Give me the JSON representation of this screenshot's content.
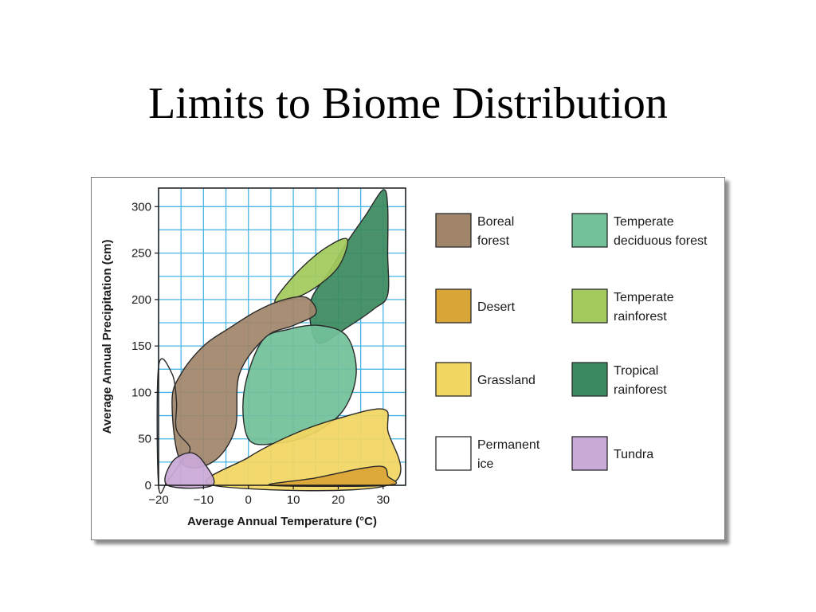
{
  "slide": {
    "title": "Limits to Biome Distribution"
  },
  "chart_data": {
    "type": "area",
    "xlabel": "Average Annual Temperature (°C)",
    "ylabel": "Average Annual Precipitation (cm)",
    "x_ticks": [
      "−20",
      "−10",
      "0",
      "10",
      "20",
      "30"
    ],
    "y_ticks": [
      "0",
      "50",
      "100",
      "150",
      "200",
      "250",
      "300"
    ],
    "xlim": [
      -20,
      35
    ],
    "ylim": [
      0,
      320
    ],
    "grid": true,
    "legend_placement": "right",
    "legend": [
      {
        "key": "boreal",
        "label_lines": [
          "Boreal",
          "forest"
        ],
        "color": "#a0856b"
      },
      {
        "key": "temperate_deciduous",
        "label_lines": [
          "Temperate",
          "deciduous forest"
        ],
        "color": "#72c19a"
      },
      {
        "key": "desert",
        "label_lines": [
          "Desert"
        ],
        "color": "#d9a536"
      },
      {
        "key": "temperate_rainforest",
        "label_lines": [
          "Temperate",
          "rainforest"
        ],
        "color": "#a3ca5c"
      },
      {
        "key": "grassland",
        "label_lines": [
          "Grassland"
        ],
        "color": "#f2d662"
      },
      {
        "key": "tropical_rainforest",
        "label_lines": [
          "Tropical",
          "rainforest"
        ],
        "color": "#3b8a5f"
      },
      {
        "key": "permanent_ice",
        "label_lines": [
          "Permanent",
          "ice"
        ],
        "color": "#ffffff"
      },
      {
        "key": "tundra",
        "label_lines": [
          "Tundra"
        ],
        "color": "#c9a9d6"
      }
    ],
    "regions": [
      {
        "key": "tropical_rainforest",
        "points": [
          [
            14,
            200
          ],
          [
            18,
            230
          ],
          [
            22,
            262
          ],
          [
            26,
            290
          ],
          [
            30,
            318
          ],
          [
            31,
            300
          ],
          [
            31,
            250
          ],
          [
            31,
            205
          ],
          [
            28,
            190
          ],
          [
            22,
            170
          ],
          [
            16,
            153
          ],
          [
            14,
            170
          ]
        ]
      },
      {
        "key": "temperate_rainforest",
        "points": [
          [
            6,
            200
          ],
          [
            11,
            230
          ],
          [
            17,
            255
          ],
          [
            22,
            265
          ],
          [
            20,
            235
          ],
          [
            14,
            210
          ],
          [
            8,
            198
          ]
        ]
      },
      {
        "key": "boreal",
        "points": [
          [
            -15,
            120
          ],
          [
            -10,
            150
          ],
          [
            -4,
            170
          ],
          [
            2,
            188
          ],
          [
            8,
            200
          ],
          [
            13,
            202
          ],
          [
            15,
            185
          ],
          [
            10,
            172
          ],
          [
            4,
            160
          ],
          [
            -2,
            120
          ],
          [
            -3,
            60
          ],
          [
            -8,
            25
          ],
          [
            -15,
            25
          ],
          [
            -17,
            90
          ]
        ]
      },
      {
        "key": "temperate_deciduous",
        "points": [
          [
            3,
            155
          ],
          [
            9,
            168
          ],
          [
            16,
            172
          ],
          [
            22,
            160
          ],
          [
            24,
            120
          ],
          [
            21,
            80
          ],
          [
            14,
            55
          ],
          [
            6,
            45
          ],
          [
            0,
            50
          ],
          [
            -1,
            100
          ]
        ]
      },
      {
        "key": "grassland",
        "points": [
          [
            -8,
            0
          ],
          [
            0,
            30
          ],
          [
            10,
            55
          ],
          [
            20,
            72
          ],
          [
            30,
            82
          ],
          [
            31,
            60
          ],
          [
            31,
            0
          ]
        ]
      },
      {
        "key": "desert",
        "points": [
          [
            5,
            0
          ],
          [
            15,
            8
          ],
          [
            25,
            18
          ],
          [
            30,
            20
          ],
          [
            31,
            10
          ],
          [
            31,
            0
          ]
        ]
      },
      {
        "key": "permanent_ice",
        "points": [
          [
            -20,
            128
          ],
          [
            -17,
            120
          ],
          [
            -16,
            90
          ],
          [
            -16,
            60
          ],
          [
            -13,
            40
          ],
          [
            -15,
            25
          ],
          [
            -18,
            5
          ],
          [
            -20,
            0
          ]
        ]
      },
      {
        "key": "tundra",
        "points": [
          [
            -18,
            0
          ],
          [
            -17,
            25
          ],
          [
            -13,
            35
          ],
          [
            -10,
            25
          ],
          [
            -8,
            0
          ]
        ]
      }
    ]
  }
}
